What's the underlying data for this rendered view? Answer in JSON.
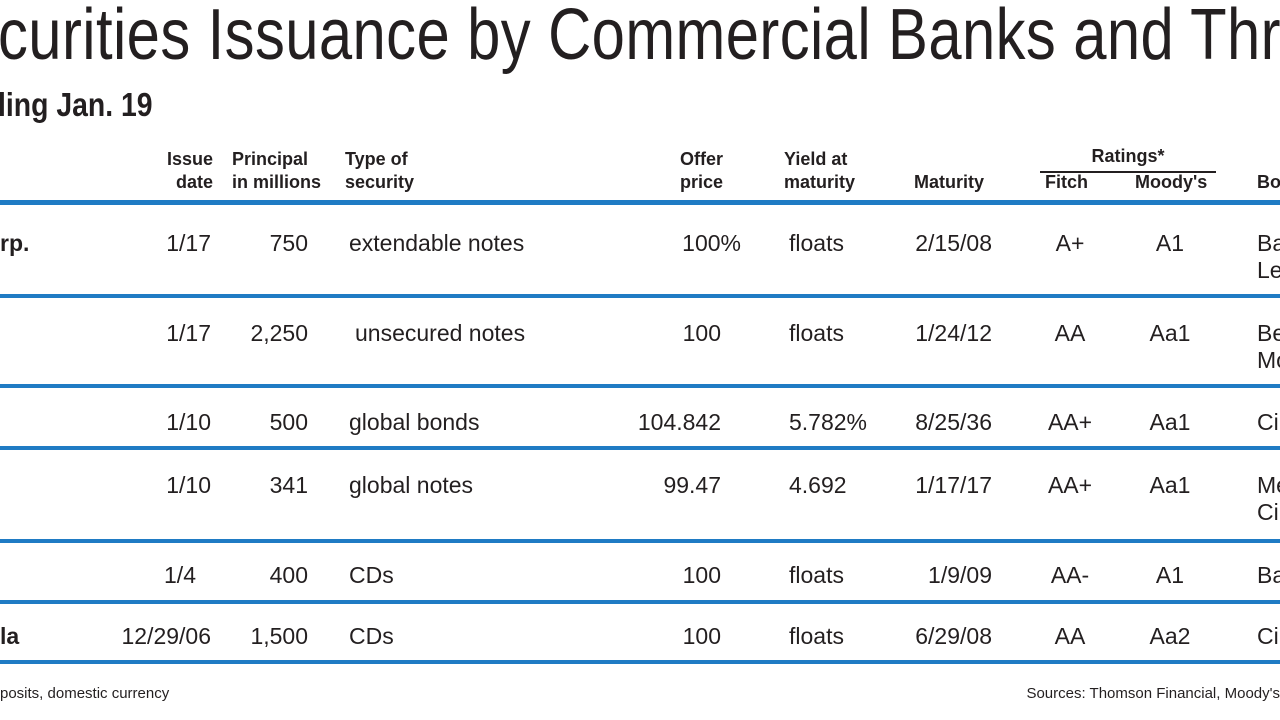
{
  "title": "curities Issuance by Commercial Banks and Thri",
  "subtitle": "ling Jan. 19",
  "headers": {
    "issue_date": [
      "Issue",
      "date"
    ],
    "principal": [
      "Principal",
      "in millions"
    ],
    "type": [
      "Type of",
      "security"
    ],
    "offer_price": [
      "Offer",
      "price"
    ],
    "yield": [
      "Yield at",
      "maturity"
    ],
    "maturity": "Maturity",
    "ratings": "Ratings*",
    "fitch": "Fitch",
    "moodys": "Moody's",
    "bookrunner": "Bo"
  },
  "rows": [
    {
      "name": "rp.",
      "issue_date": "1/17",
      "principal": "750",
      "type": "extendable notes",
      "offer_price": "100%",
      "yield": "floats",
      "maturity": "2/15/08",
      "fitch": "A+",
      "moodys": "A1",
      "bookrunner": [
        "Ba",
        "Le"
      ]
    },
    {
      "name": "",
      "issue_date": "1/17",
      "principal": "2,250",
      "type": "unsecured notes",
      "offer_price": "100",
      "yield": "floats",
      "maturity": "1/24/12",
      "fitch": "AA",
      "moodys": "Aa1",
      "bookrunner": [
        "Be",
        "Mo"
      ]
    },
    {
      "name": "",
      "issue_date": "1/10",
      "principal": "500",
      "type": "global bonds",
      "offer_price": "104.842",
      "yield": "5.782%",
      "maturity": "8/25/36",
      "fitch": "AA+",
      "moodys": "Aa1",
      "bookrunner": [
        "Ci"
      ]
    },
    {
      "name": "",
      "issue_date": "1/10",
      "principal": "341",
      "type": "global notes",
      "offer_price": "99.47",
      "yield": "4.692",
      "maturity": "1/17/17",
      "fitch": "AA+",
      "moodys": "Aa1",
      "bookrunner": [
        "Me",
        "Ci"
      ]
    },
    {
      "name": "",
      "issue_date": "1/4",
      "principal": "400",
      "type": "CDs",
      "offer_price": "100",
      "yield": "floats",
      "maturity": "1/9/09",
      "fitch": "AA-",
      "moodys": "A1",
      "bookrunner": [
        "Ba"
      ]
    },
    {
      "name": "la",
      "issue_date": "12/29/06",
      "principal": "1,500",
      "type": "CDs",
      "offer_price": "100",
      "yield": "floats",
      "maturity": "6/29/08",
      "fitch": "AA",
      "moodys": "Aa2",
      "bookrunner": [
        "Ci"
      ]
    }
  ],
  "footnote_left": "posits, domestic currency",
  "footnote_right": "Sources: Thomson Financial, Moody's"
}
